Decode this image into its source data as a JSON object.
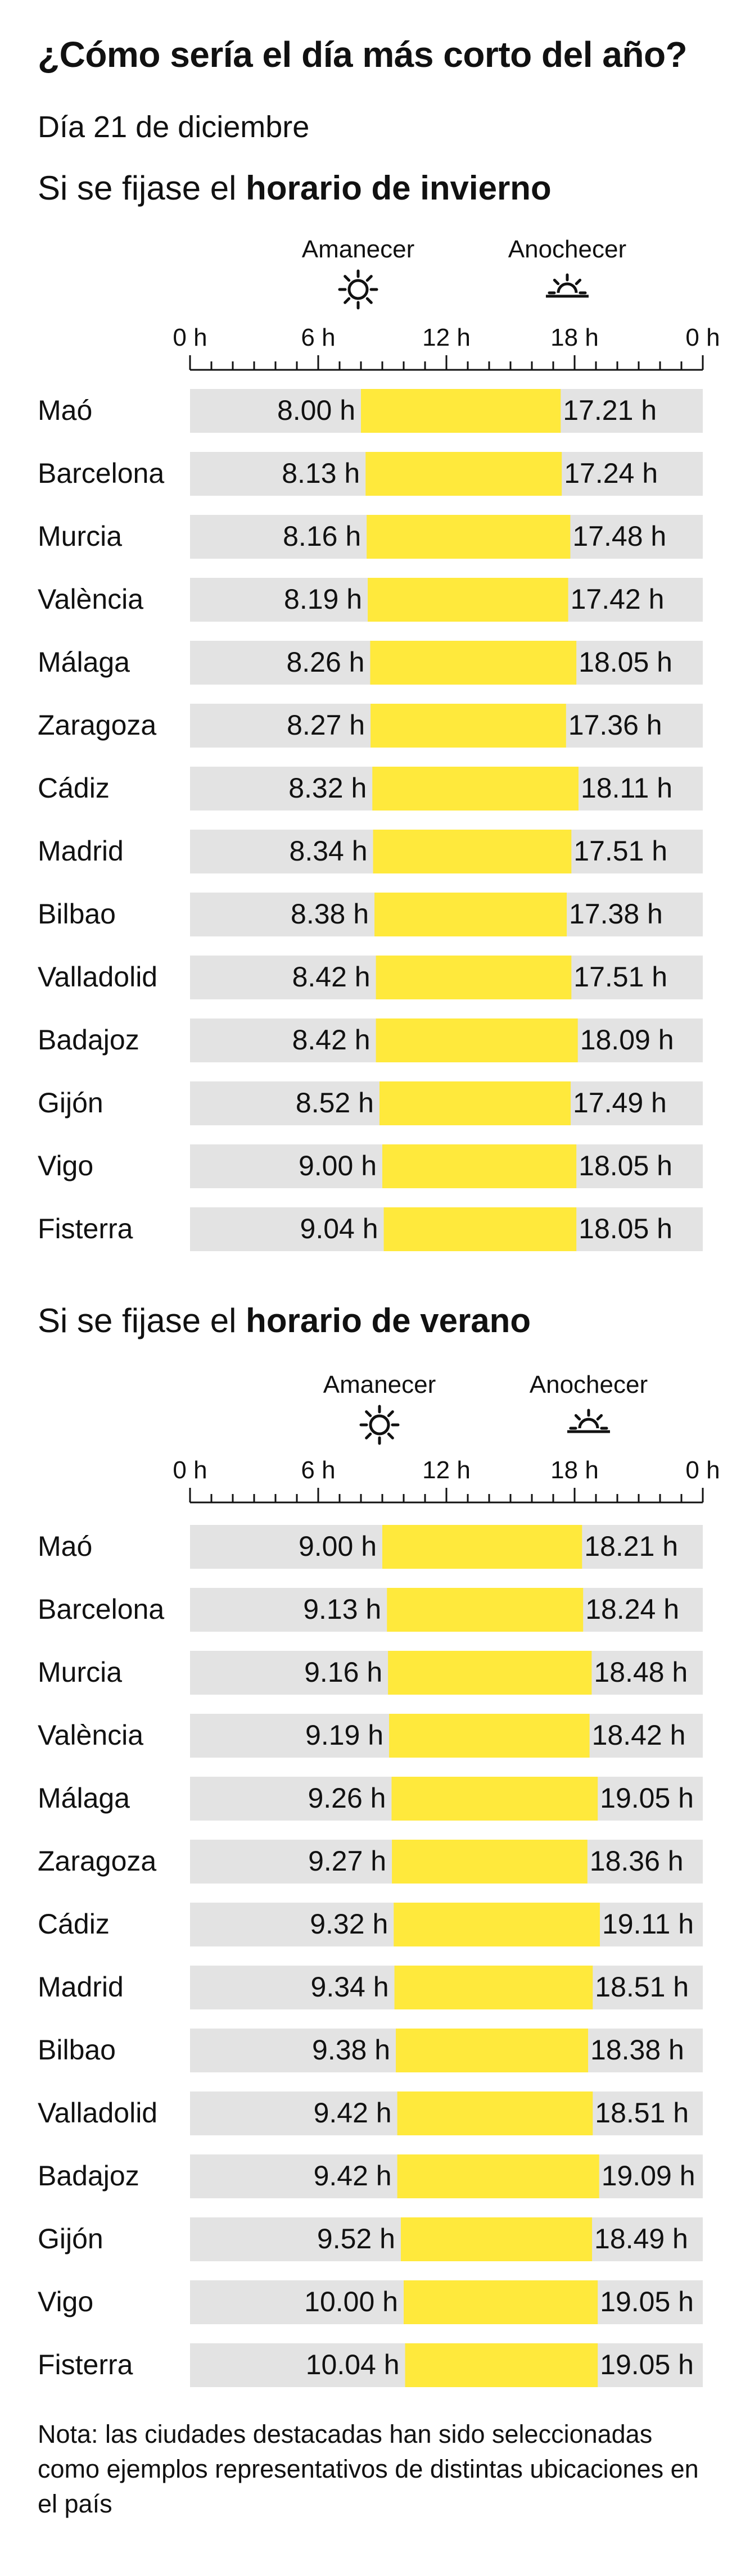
{
  "title": "¿Cómo sería el día más corto del año?",
  "subtitle": "Día 21 de diciembre",
  "sections": [
    {
      "prefix": "Si se fijase el ",
      "bold": "horario de invierno"
    },
    {
      "prefix": "Si se fijase el ",
      "bold": "horario de verano"
    }
  ],
  "labels": {
    "sunrise": "Amanecer",
    "sunset": "Anochecer"
  },
  "note": "Nota: las ciudades destacadas han sido seleccionadas como ejemplos representativos de distintas ubicaciones en el país",
  "colors": {
    "bar": "#ffe93c",
    "track": "#e3e3e3",
    "text": "#111111"
  },
  "icons": {
    "sunrise": "sun-icon",
    "sunset": "sunset-icon"
  },
  "chart_data": [
    {
      "type": "bar",
      "subtype": "floating-range",
      "title": "Si se fijase el horario de invierno",
      "xlim": [
        0,
        24
      ],
      "xticks": [
        0,
        6,
        12,
        18,
        24
      ],
      "xtick_labels": [
        "0 h",
        "6 h",
        "12 h",
        "18 h",
        "0 h"
      ],
      "minor_tick_step": 1,
      "categories": [
        "Maó",
        "Barcelona",
        "Murcia",
        "València",
        "Málaga",
        "Zaragoza",
        "Cádiz",
        "Madrid",
        "Bilbao",
        "Valladolid",
        "Badajoz",
        "Gijón",
        "Vigo",
        "Fisterra"
      ],
      "start_labels": [
        "8.00 h",
        "8.13 h",
        "8.16 h",
        "8.19 h",
        "8.26 h",
        "8.27 h",
        "8.32 h",
        "8.34 h",
        "8.38 h",
        "8.42 h",
        "8.42 h",
        "8.52 h",
        "9.00 h",
        "9.04 h"
      ],
      "end_labels": [
        "17.21 h",
        "17.24 h",
        "17.48 h",
        "17.42 h",
        "18.05 h",
        "17.36 h",
        "18.11 h",
        "17.51 h",
        "17.38 h",
        "17.51 h",
        "18.09 h",
        "17.49 h",
        "18.05 h",
        "18.05 h"
      ],
      "series": [
        {
          "name": "Amanecer",
          "values": [
            8.0,
            8.217,
            8.267,
            8.317,
            8.433,
            8.45,
            8.533,
            8.567,
            8.633,
            8.7,
            8.7,
            8.867,
            9.0,
            9.067
          ]
        },
        {
          "name": "Anochecer",
          "values": [
            17.35,
            17.4,
            17.8,
            17.7,
            18.083,
            17.6,
            18.183,
            17.85,
            17.633,
            17.85,
            18.15,
            17.817,
            18.083,
            18.083
          ]
        }
      ]
    },
    {
      "type": "bar",
      "subtype": "floating-range",
      "title": "Si se fijase el horario de verano",
      "xlim": [
        0,
        24
      ],
      "xticks": [
        0,
        6,
        12,
        18,
        24
      ],
      "xtick_labels": [
        "0 h",
        "6 h",
        "12 h",
        "18 h",
        "0 h"
      ],
      "minor_tick_step": 1,
      "categories": [
        "Maó",
        "Barcelona",
        "Murcia",
        "València",
        "Málaga",
        "Zaragoza",
        "Cádiz",
        "Madrid",
        "Bilbao",
        "Valladolid",
        "Badajoz",
        "Gijón",
        "Vigo",
        "Fisterra"
      ],
      "start_labels": [
        "9.00 h",
        "9.13 h",
        "9.16 h",
        "9.19 h",
        "9.26 h",
        "9.27 h",
        "9.32 h",
        "9.34 h",
        "9.38 h",
        "9.42 h",
        "9.42 h",
        "9.52 h",
        "10.00 h",
        "10.04 h"
      ],
      "end_labels": [
        "18.21 h",
        "18.24 h",
        "18.48 h",
        "18.42 h",
        "19.05 h",
        "18.36 h",
        "19.11 h",
        "18.51 h",
        "18.38 h",
        "18.51 h",
        "19.09 h",
        "18.49 h",
        "19.05 h",
        "19.05 h"
      ],
      "series": [
        {
          "name": "Amanecer",
          "values": [
            9.0,
            9.217,
            9.267,
            9.317,
            9.433,
            9.45,
            9.533,
            9.567,
            9.633,
            9.7,
            9.7,
            9.867,
            10.0,
            10.067
          ]
        },
        {
          "name": "Anochecer",
          "values": [
            18.35,
            18.4,
            18.8,
            18.7,
            19.083,
            18.6,
            19.183,
            18.85,
            18.633,
            18.85,
            19.15,
            18.817,
            19.083,
            19.083
          ]
        }
      ]
    }
  ]
}
